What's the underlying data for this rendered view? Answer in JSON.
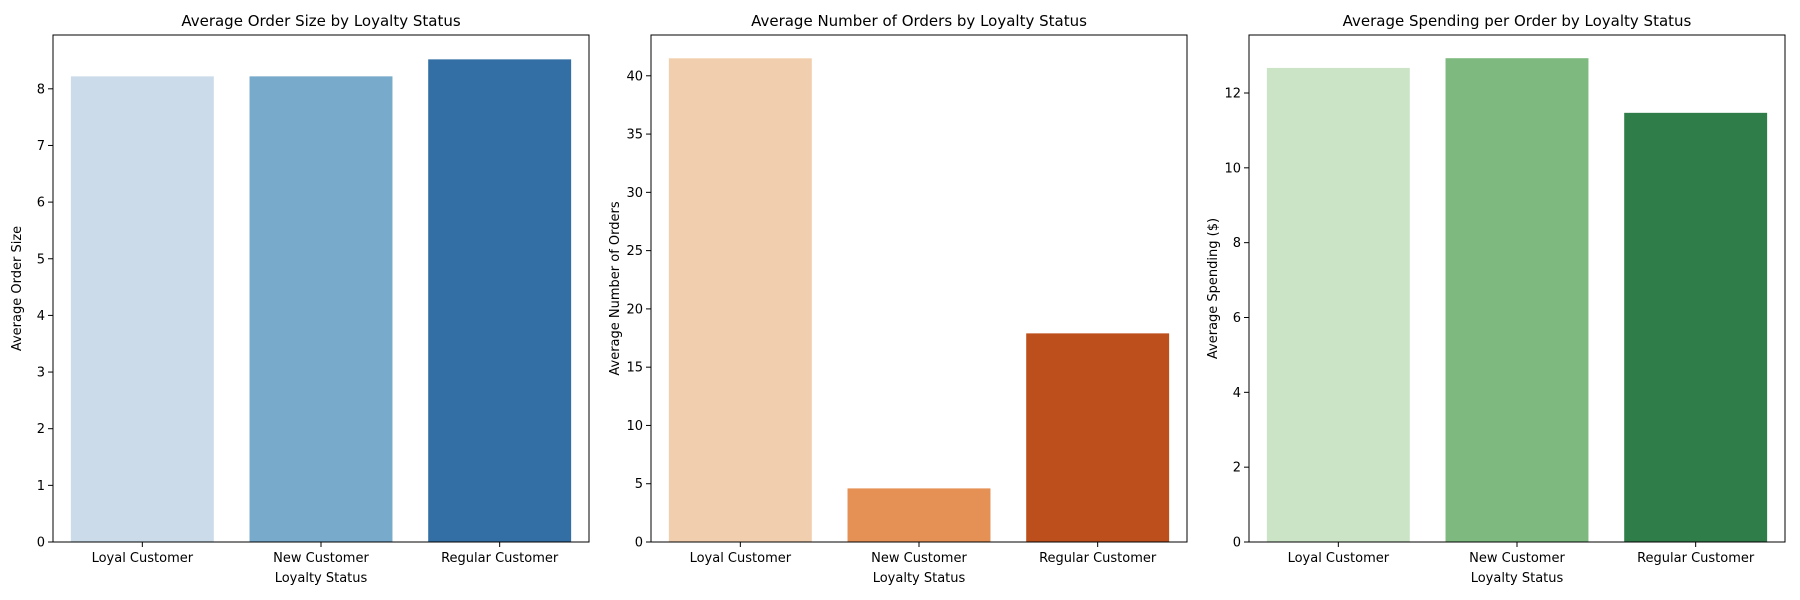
{
  "chart_data": [
    {
      "type": "bar",
      "title": "Average Order Size by Loyalty Status",
      "xlabel": "Loyalty Status",
      "ylabel": "Average Order Size",
      "categories": [
        "Loyal Customer",
        "New Customer",
        "Regular Customer"
      ],
      "values": [
        8.22,
        8.22,
        8.52
      ],
      "ylim": [
        0,
        8.95
      ],
      "yticks": [
        0,
        1,
        2,
        3,
        4,
        5,
        6,
        7,
        8
      ],
      "colors": [
        "#cbdbea",
        "#78aacb",
        "#336fa4"
      ],
      "grid": false
    },
    {
      "type": "bar",
      "title": "Average Number of Orders by Loyalty Status",
      "xlabel": "Loyalty Status",
      "ylabel": "Average Number of Orders",
      "categories": [
        "Loyal Customer",
        "New Customer",
        "Regular Customer"
      ],
      "values": [
        41.5,
        4.6,
        17.9
      ],
      "ylim": [
        0,
        43.5
      ],
      "yticks": [
        0,
        5,
        10,
        15,
        20,
        25,
        30,
        35,
        40
      ],
      "colors": [
        "#f1cead",
        "#e59155",
        "#bd4f1c"
      ],
      "grid": false
    },
    {
      "type": "bar",
      "title": "Average Spending per Order by Loyalty Status",
      "xlabel": "Loyalty Status",
      "ylabel": "Average Spending ($)",
      "categories": [
        "Loyal Customer",
        "New Customer",
        "Regular Customer"
      ],
      "values": [
        12.67,
        12.93,
        11.47
      ],
      "ylim": [
        0,
        13.55
      ],
      "yticks": [
        0,
        2,
        4,
        6,
        8,
        10,
        12
      ],
      "colors": [
        "#cbe4c6",
        "#7eba7f",
        "#2f7e4a"
      ],
      "grid": false
    }
  ]
}
